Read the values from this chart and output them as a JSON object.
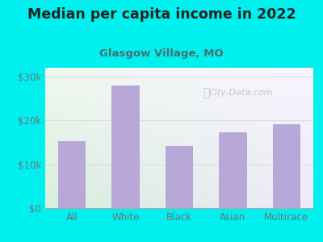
{
  "title": "Median per capita income in 2022",
  "subtitle": "Glasgow Village, MO",
  "categories": [
    "All",
    "White",
    "Black",
    "Asian",
    "Multirace"
  ],
  "values": [
    15200,
    28000,
    14200,
    17200,
    19200
  ],
  "bar_color": "#b8a8d8",
  "background_outer": "#00f0f0",
  "background_inner_left": "#d8eedd",
  "background_inner_right": "#eeeaf8",
  "title_color": "#222222",
  "subtitle_color": "#447070",
  "tick_color": "#667777",
  "grid_color": "#dddddd",
  "ylim": [
    0,
    32000
  ],
  "yticks": [
    0,
    10000,
    20000,
    30000
  ],
  "ytick_labels": [
    "$0",
    "$10k",
    "$20k",
    "$30k"
  ],
  "watermark": "City-Data.com"
}
